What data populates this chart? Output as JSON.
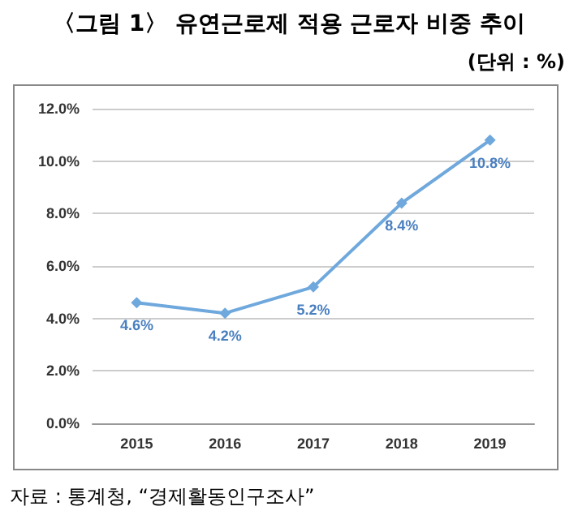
{
  "chart_data": {
    "type": "line",
    "title": "〈그림 1〉 유연근로제 적용 근로자 비중 추이",
    "subtitle": "(단위 : %)",
    "annotations": [
      "자료 : 통계청, “경제활동인구조사”"
    ],
    "categories": [
      "2015",
      "2016",
      "2017",
      "2018",
      "2019"
    ],
    "series": [
      {
        "color": "#6fa8dc",
        "values": [
          4.6,
          4.2,
          5.2,
          8.4,
          10.8
        ],
        "value_labels": [
          "4.6%",
          "4.2%",
          "5.2%",
          "8.4%",
          "10.8%"
        ]
      }
    ],
    "ylim": [
      0,
      12
    ],
    "yticks": [
      {
        "value": 0,
        "label": "0.0%"
      },
      {
        "value": 2,
        "label": "2.0%"
      },
      {
        "value": 4,
        "label": "4.0%"
      },
      {
        "value": 6,
        "label": "6.0%"
      },
      {
        "value": 8,
        "label": "8.0%"
      },
      {
        "value": 10,
        "label": "10.0%"
      },
      {
        "value": 12,
        "label": "12.0%"
      }
    ],
    "grid": "y",
    "marker": "diamond",
    "line_style": "solid"
  }
}
